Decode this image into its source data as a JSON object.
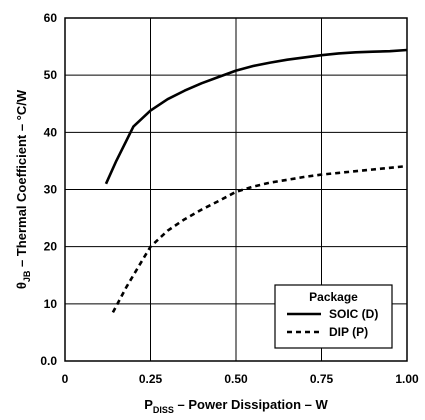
{
  "chart_data": {
    "type": "line",
    "xlabel_main": "P",
    "xlabel_sub": "DISS",
    "xlabel_rest": " – Power Dissipation –  W",
    "ylabel_main": "θ",
    "ylabel_sub": "JB",
    "ylabel_rest": " – Thermal Coefficient – °C/W",
    "xlim": [
      0,
      1.0
    ],
    "ylim": [
      0,
      60
    ],
    "xticks": [
      {
        "value": 0,
        "label": "0"
      },
      {
        "value": 0.25,
        "label": "0.25"
      },
      {
        "value": 0.5,
        "label": "0.50"
      },
      {
        "value": 0.75,
        "label": "0.75"
      },
      {
        "value": 1.0,
        "label": "1.00"
      }
    ],
    "yticks": [
      {
        "value": 0,
        "label": "0.0"
      },
      {
        "value": 10,
        "label": "10"
      },
      {
        "value": 20,
        "label": "20"
      },
      {
        "value": 30,
        "label": "30"
      },
      {
        "value": 40,
        "label": "40"
      },
      {
        "value": 50,
        "label": "50"
      },
      {
        "value": 60,
        "label": "60"
      }
    ],
    "grid": true,
    "legend_title": "Package",
    "legend_position": "bottom-right",
    "series": [
      {
        "name": "SOIC (D)",
        "style": "solid",
        "color": "#000000",
        "points": [
          [
            0.12,
            31
          ],
          [
            0.15,
            35
          ],
          [
            0.2,
            41
          ],
          [
            0.25,
            43.8
          ],
          [
            0.3,
            45.8
          ],
          [
            0.35,
            47.3
          ],
          [
            0.4,
            48.6
          ],
          [
            0.45,
            49.7
          ],
          [
            0.5,
            50.8
          ],
          [
            0.55,
            51.6
          ],
          [
            0.6,
            52.2
          ],
          [
            0.65,
            52.7
          ],
          [
            0.7,
            53.1
          ],
          [
            0.75,
            53.5
          ],
          [
            0.8,
            53.8
          ],
          [
            0.85,
            54.0
          ],
          [
            0.9,
            54.1
          ],
          [
            0.95,
            54.2
          ],
          [
            1.0,
            54.4
          ]
        ]
      },
      {
        "name": "DIP (P)",
        "style": "dashed",
        "color": "#000000",
        "points": [
          [
            0.14,
            8.5
          ],
          [
            0.18,
            13
          ],
          [
            0.22,
            17
          ],
          [
            0.25,
            20
          ],
          [
            0.3,
            22.8
          ],
          [
            0.35,
            24.8
          ],
          [
            0.4,
            26.5
          ],
          [
            0.45,
            28
          ],
          [
            0.5,
            29.6
          ],
          [
            0.55,
            30.5
          ],
          [
            0.6,
            31.2
          ],
          [
            0.65,
            31.7
          ],
          [
            0.7,
            32.2
          ],
          [
            0.75,
            32.6
          ],
          [
            0.8,
            32.9
          ],
          [
            0.85,
            33.2
          ],
          [
            0.9,
            33.5
          ],
          [
            0.95,
            33.8
          ],
          [
            1.0,
            34.1
          ]
        ]
      }
    ]
  }
}
